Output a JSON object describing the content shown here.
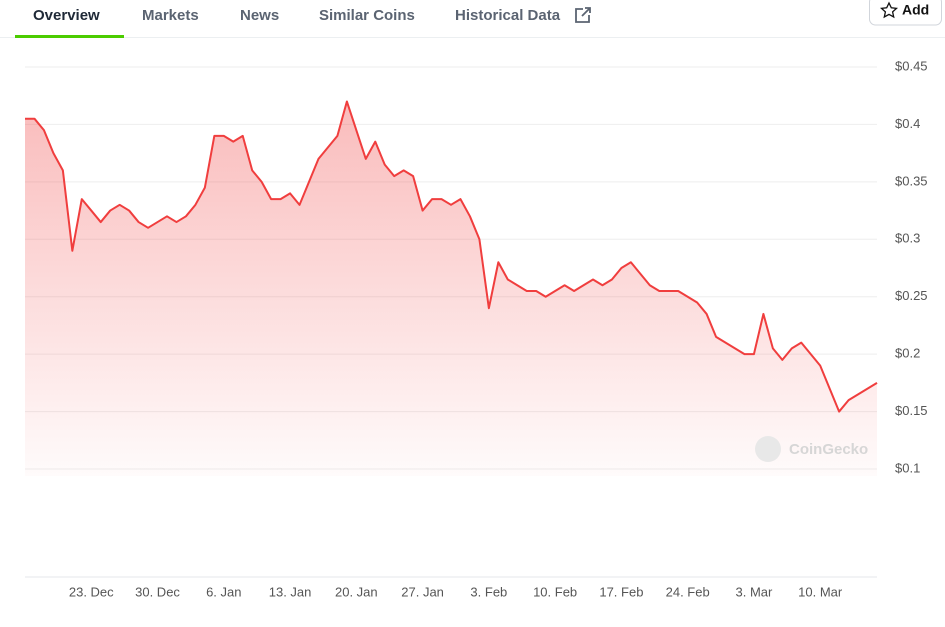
{
  "tabs": [
    "Overview",
    "Markets",
    "News",
    "Similar Coins",
    "Historical Data"
  ],
  "add_button": "Add",
  "watermark": "CoinGecko",
  "chart_data": {
    "type": "area",
    "x": [
      "16. Dec",
      "17. Dec",
      "18. Dec",
      "19. Dec",
      "20. Dec",
      "21. Dec",
      "22. Dec",
      "23. Dec",
      "24. Dec",
      "25. Dec",
      "26. Dec",
      "27. Dec",
      "28. Dec",
      "29. Dec",
      "30. Dec",
      "31. Dec",
      "1. Jan",
      "2. Jan",
      "3. Jan",
      "4. Jan",
      "5. Jan",
      "6. Jan",
      "7. Jan",
      "8. Jan",
      "9. Jan",
      "10. Jan",
      "11. Jan",
      "12. Jan",
      "13. Jan",
      "14. Jan",
      "15. Jan",
      "16. Jan",
      "17. Jan",
      "18. Jan",
      "19. Jan",
      "20. Jan",
      "21. Jan",
      "22. Jan",
      "23. Jan",
      "24. Jan",
      "25. Jan",
      "26. Jan",
      "27. Jan",
      "28. Jan",
      "29. Jan",
      "30. Jan",
      "31. Jan",
      "1. Feb",
      "2. Feb",
      "3. Feb",
      "4. Feb",
      "5. Feb",
      "6. Feb",
      "7. Feb",
      "8. Feb",
      "9. Feb",
      "10. Feb",
      "11. Feb",
      "12. Feb",
      "13. Feb",
      "14. Feb",
      "15. Feb",
      "16. Feb",
      "17. Feb",
      "18. Feb",
      "19. Feb",
      "20. Feb",
      "21. Feb",
      "22. Feb",
      "23. Feb",
      "24. Feb",
      "25. Feb",
      "26. Feb",
      "27. Feb",
      "28. Feb",
      "1. Mar",
      "2. Mar",
      "3. Mar",
      "4. Mar",
      "5. Mar",
      "6. Mar",
      "7. Mar",
      "8. Mar",
      "9. Mar",
      "10. Mar",
      "11. Mar",
      "12. Mar",
      "13. Mar",
      "14. Mar",
      "15. Mar",
      "16. Mar"
    ],
    "y": [
      0.405,
      0.405,
      0.395,
      0.375,
      0.36,
      0.29,
      0.335,
      0.325,
      0.315,
      0.325,
      0.33,
      0.325,
      0.315,
      0.31,
      0.315,
      0.32,
      0.315,
      0.32,
      0.33,
      0.345,
      0.39,
      0.39,
      0.385,
      0.39,
      0.36,
      0.35,
      0.335,
      0.335,
      0.34,
      0.33,
      0.35,
      0.37,
      0.38,
      0.39,
      0.42,
      0.395,
      0.37,
      0.385,
      0.365,
      0.355,
      0.36,
      0.355,
      0.325,
      0.335,
      0.335,
      0.33,
      0.335,
      0.32,
      0.3,
      0.24,
      0.28,
      0.265,
      0.26,
      0.255,
      0.255,
      0.25,
      0.255,
      0.26,
      0.255,
      0.26,
      0.265,
      0.26,
      0.265,
      0.275,
      0.28,
      0.27,
      0.26,
      0.255,
      0.255,
      0.255,
      0.25,
      0.245,
      0.235,
      0.215,
      0.21,
      0.205,
      0.2,
      0.2,
      0.235,
      0.205,
      0.195,
      0.205,
      0.21,
      0.2,
      0.19,
      0.17,
      0.15,
      0.16,
      0.165,
      0.17,
      0.175
    ],
    "color": "#f03e3e",
    "xticks": [
      "23. Dec",
      "30. Dec",
      "6. Jan",
      "13. Jan",
      "20. Jan",
      "27. Jan",
      "3. Feb",
      "10. Feb",
      "17. Feb",
      "24. Feb",
      "3. Mar",
      "10. Mar"
    ],
    "ylim": [
      0.1,
      0.45
    ],
    "yticks": [
      {
        "value": 0.1,
        "label": "$0.1"
      },
      {
        "value": 0.15,
        "label": "$0.15"
      },
      {
        "value": 0.2,
        "label": "$0.2"
      },
      {
        "value": 0.25,
        "label": "$0.25"
      },
      {
        "value": 0.3,
        "label": "$0.3"
      },
      {
        "value": 0.35,
        "label": "$0.35"
      },
      {
        "value": 0.4,
        "label": "$0.4"
      },
      {
        "value": 0.45,
        "label": "$0.45"
      }
    ],
    "grid": true
  }
}
